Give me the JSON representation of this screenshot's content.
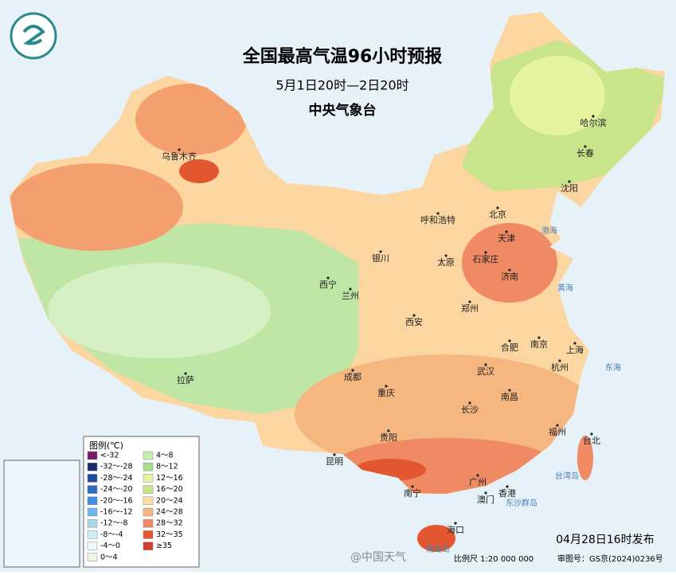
{
  "header": {
    "title": "全国最高气温96小时预报",
    "subtitle": "5月1日20时—2日20时",
    "issuer": "中央气象台"
  },
  "cities": [
    "乌鲁木齐",
    "哈尔滨",
    "长春",
    "沈阳",
    "北京",
    "天津",
    "呼和浩特",
    "石家庄",
    "太原",
    "银川",
    "济南",
    "西宁",
    "兰州",
    "郑州",
    "西安",
    "合肥",
    "南京",
    "上海",
    "杭州",
    "武汉",
    "成都",
    "拉萨",
    "重庆",
    "南昌",
    "长沙",
    "福州",
    "台北",
    "贵阳",
    "昆明",
    "南宁",
    "广州",
    "香港",
    "澳门",
    "海口"
  ],
  "seas": [
    "黄海",
    "东海",
    "渤海",
    "台湾岛",
    "东沙群岛",
    "南海岛"
  ],
  "legend": {
    "title": "图例(℃)",
    "items": [
      {
        "label": "<-32",
        "color": "#7b1a6e"
      },
      {
        "label": "-32～-28",
        "color": "#1d2a6b"
      },
      {
        "label": "-28～-24",
        "color": "#1d4a9a"
      },
      {
        "label": "-24～-20",
        "color": "#2a6dc2"
      },
      {
        "label": "-20～-16",
        "color": "#3f8fe0"
      },
      {
        "label": "-16～-12",
        "color": "#6db5ee"
      },
      {
        "label": "-12～-8",
        "color": "#a6d8f2"
      },
      {
        "label": "-8～-4",
        "color": "#cfeef7"
      },
      {
        "label": "-4～0",
        "color": "#eef9fb"
      },
      {
        "label": "0～4",
        "color": "#e8f7e0"
      },
      {
        "label": "4～8",
        "color": "#c8ecb0"
      },
      {
        "label": "8～12",
        "color": "#a8df8e"
      },
      {
        "label": "12～16",
        "color": "#e6f3a0"
      },
      {
        "label": "16～20",
        "color": "#c9e58b"
      },
      {
        "label": "20～24",
        "color": "#fbe1a8"
      },
      {
        "label": "24～28",
        "color": "#f6b680"
      },
      {
        "label": "28～32",
        "color": "#f08a64"
      },
      {
        "label": "32～35",
        "color": "#e2572f"
      },
      {
        "label": "≥35",
        "color": "#d63c2c"
      }
    ]
  },
  "footer": {
    "issued": "04月28日16时发布",
    "scale": "比例尺 1:20 000 000",
    "approval": "审图号：GS京(2024)0236号",
    "watermark": "@中国天气"
  }
}
